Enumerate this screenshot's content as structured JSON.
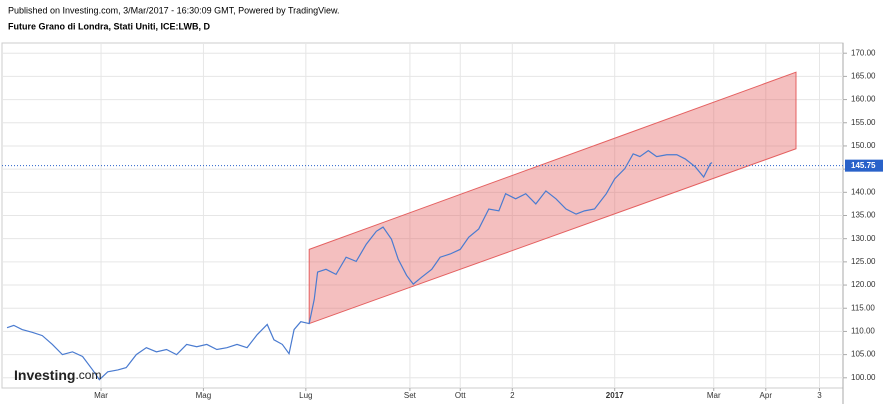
{
  "chart_data": {
    "type": "line",
    "subtitle": "Published on Investing.com, 3/Mar/2017 - 16:30:09 GMT, Powered by TradingView.",
    "title": "Future Grano di Londra, Stati Uniti, ICE:LWB, D",
    "logo": {
      "brand": "Investing",
      "suffix": ".com"
    },
    "xlim": [
      1,
      502
    ],
    "xticks": [
      {
        "value": 60,
        "label": "Mar"
      },
      {
        "value": 121,
        "label": "Mag"
      },
      {
        "value": 182,
        "label": "Lug"
      },
      {
        "value": 244,
        "label": "Set"
      },
      {
        "value": 274,
        "label": "Ott"
      },
      {
        "value": 305,
        "label": "2"
      },
      {
        "value": 366,
        "label": "2017"
      },
      {
        "value": 425,
        "label": "Mar"
      },
      {
        "value": 456,
        "label": "Apr"
      },
      {
        "value": 488,
        "label": "3"
      }
    ],
    "ylim": [
      97.8,
      172.2
    ],
    "yticks": [
      {
        "value": 100,
        "label": "100.00"
      },
      {
        "value": 105,
        "label": "105.00"
      },
      {
        "value": 110,
        "label": "110.00"
      },
      {
        "value": 115,
        "label": "115.00"
      },
      {
        "value": 120,
        "label": "120.00"
      },
      {
        "value": 125,
        "label": "125.00"
      },
      {
        "value": 130,
        "label": "130.00"
      },
      {
        "value": 135,
        "label": "135.00"
      },
      {
        "value": 140,
        "label": "140.00"
      },
      {
        "value": 145,
        "label": "145.00"
      },
      {
        "value": 150,
        "label": "150.00"
      },
      {
        "value": 155,
        "label": "155.00"
      },
      {
        "value": 160,
        "label": "160.00"
      },
      {
        "value": 165,
        "label": "165.00"
      },
      {
        "value": 170,
        "label": "170.00"
      }
    ],
    "grid": true,
    "x": [
      4,
      8,
      13,
      19,
      25,
      31,
      37,
      43,
      49,
      55,
      59,
      64,
      70,
      75,
      81,
      87,
      93,
      99,
      105,
      111,
      117,
      123,
      129,
      135,
      141,
      147,
      153,
      159,
      163,
      168,
      172,
      175,
      179,
      184,
      187,
      189,
      194,
      200,
      206,
      212,
      218,
      224,
      228,
      233,
      237,
      242,
      246,
      251,
      257,
      262,
      268,
      274,
      279,
      285,
      291,
      297,
      301,
      307,
      313,
      319,
      325,
      331,
      337,
      343,
      348,
      354,
      361,
      366,
      372,
      377,
      381,
      386,
      391,
      397,
      403,
      408,
      414,
      419,
      423,
      424
    ],
    "series": [
      {
        "color": "#4a7bd0",
        "values": [
          110.8,
          111.3,
          110.4,
          109.8,
          109.1,
          107.2,
          105,
          105.6,
          104.6,
          101.7,
          99.6,
          101.3,
          101.7,
          102.2,
          105,
          106.5,
          105.6,
          106.1,
          105,
          107.2,
          106.7,
          107.2,
          106.1,
          106.5,
          107.2,
          106.5,
          109.3,
          111.5,
          108.2,
          107.2,
          105.2,
          110.4,
          112.1,
          111.7,
          116.9,
          122.8,
          123.4,
          122.3,
          126,
          125.1,
          128.8,
          131.6,
          132.5,
          129.9,
          125.6,
          122.1,
          120.2,
          121.7,
          123.4,
          126,
          126.7,
          127.7,
          130.3,
          132.1,
          136.4,
          136,
          139.7,
          138.6,
          139.7,
          137.5,
          140.3,
          138.6,
          136.4,
          135.3,
          136,
          136.4,
          139.7,
          142.9,
          145.1,
          148.3,
          147.7,
          149,
          147.7,
          148.1,
          148.1,
          147.2,
          145.5,
          143.3,
          146.2,
          146.4
        ]
      }
    ],
    "last_value": {
      "value": 145.75,
      "label": "145.75",
      "color": "#2962c9"
    },
    "channel": {
      "x": [
        184,
        474
      ],
      "upper": [
        127.7,
        165.9
      ],
      "lower": [
        111.7,
        149.4
      ],
      "color": "#e46060"
    }
  }
}
